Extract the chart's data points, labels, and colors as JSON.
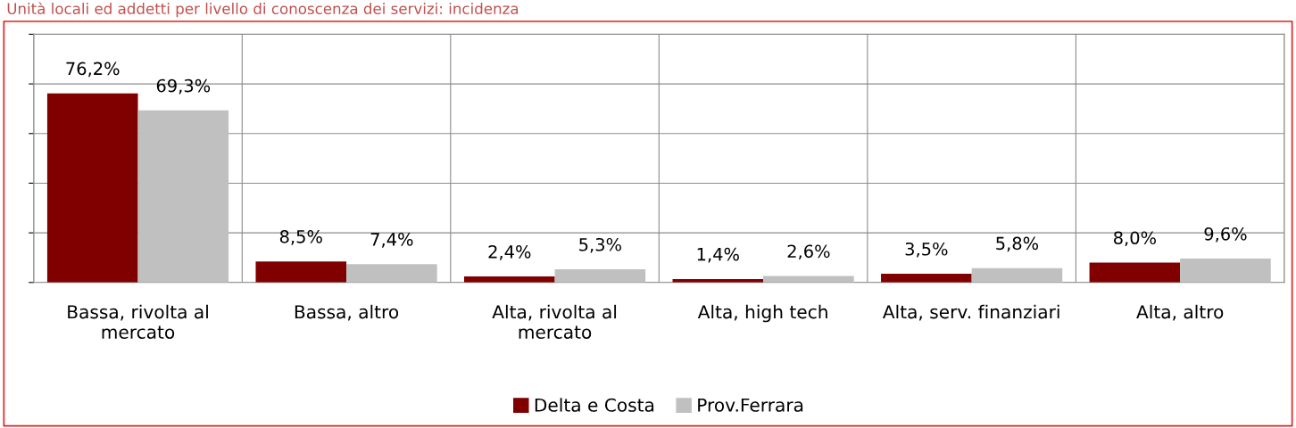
{
  "chart_data": {
    "type": "bar",
    "title": "Unità locali ed addetti per livello di conoscenza dei servizi: incidenza",
    "categories": [
      "Bassa, rivolta al\nmercato",
      "Bassa, altro",
      "Alta, rivolta al\nmercato",
      "Alta, high tech",
      "Alta, serv. finanziari",
      "Alta, altro"
    ],
    "series": [
      {
        "name": "Delta e Costa",
        "color": "#800000",
        "values": [
          76.2,
          8.5,
          2.4,
          1.4,
          3.5,
          8.0
        ],
        "value_labels": [
          "76,2%",
          "8,5%",
          "2,4%",
          "1,4%",
          "3,5%",
          "8,0%"
        ]
      },
      {
        "name": "Prov.Ferrara",
        "color": "#c0c0c0",
        "values": [
          69.3,
          7.4,
          5.3,
          2.6,
          5.8,
          9.6
        ],
        "value_labels": [
          "69,3%",
          "7,4%",
          "5,3%",
          "2,6%",
          "5,8%",
          "9,6%"
        ]
      }
    ],
    "ylim": [
      0,
      100
    ],
    "yticks": [
      {
        "value": 0,
        "label": null
      },
      {
        "value": 20,
        "label": null
      },
      {
        "value": 40,
        "label": null
      },
      {
        "value": 60,
        "label": null
      },
      {
        "value": 80,
        "label": null
      },
      {
        "value": 100,
        "label": null
      }
    ],
    "grid": true,
    "legend": "bottom",
    "tick_labels": "x"
  }
}
